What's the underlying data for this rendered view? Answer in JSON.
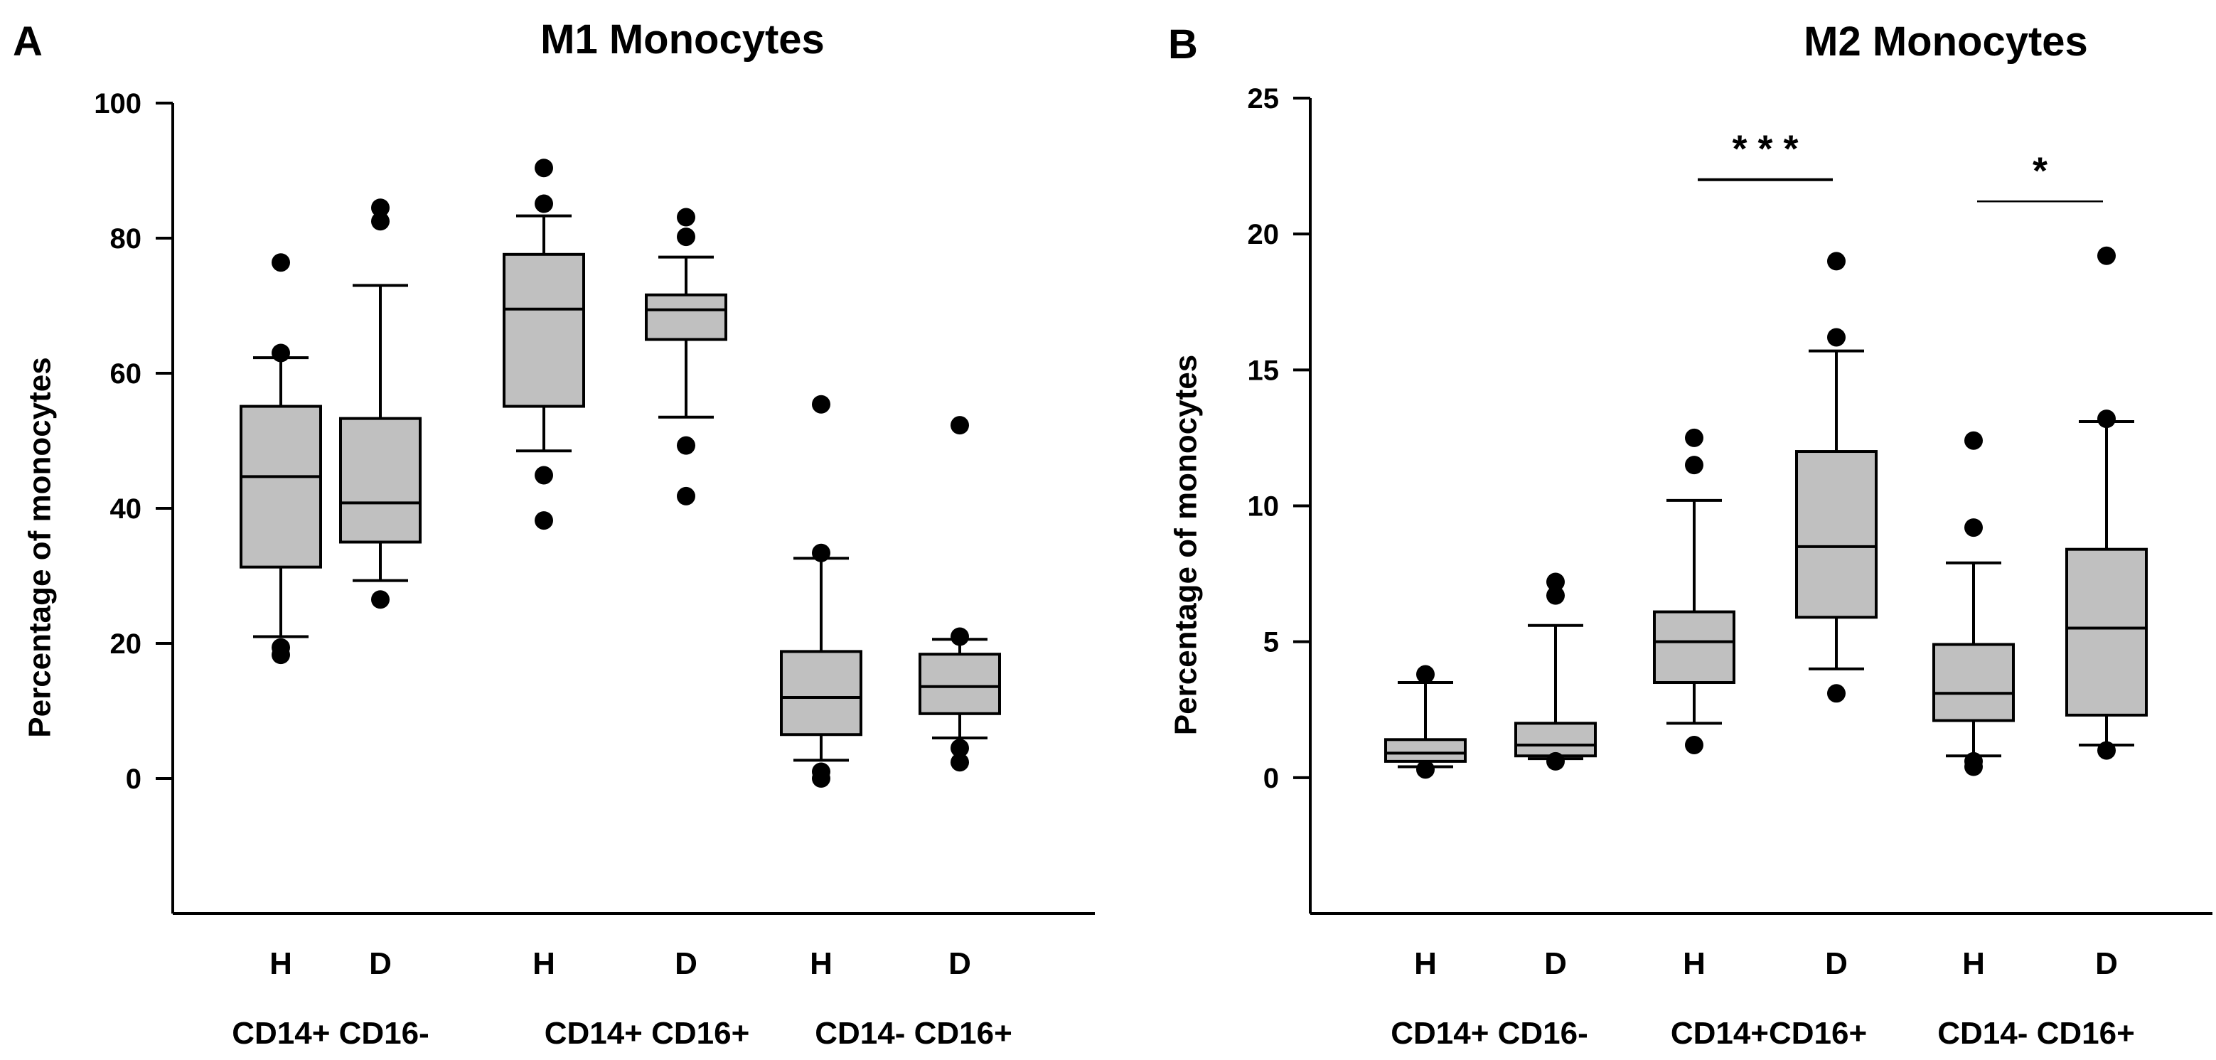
{
  "chart_data": [
    {
      "type": "box",
      "panel_label": "A",
      "title": "M1 Monocytes",
      "ylabel": "Percentage of monocytes",
      "xlabel": "",
      "ylim": [
        -20,
        100
      ],
      "yticks": [
        0,
        20,
        40,
        60,
        80,
        100
      ],
      "grid": false,
      "box_color": "#c0c0c0",
      "categories": [
        "H",
        "D",
        "H",
        "D",
        "H",
        "D"
      ],
      "groups": [
        {
          "label": "CD14+ CD16-",
          "categories": [
            0,
            1
          ]
        },
        {
          "label": "CD14+ CD16+",
          "categories": [
            2,
            3
          ]
        },
        {
          "label": "CD14- CD16+",
          "categories": [
            4,
            5
          ]
        }
      ],
      "boxes": [
        {
          "whisker_low": 21,
          "q1": 31.3,
          "median": 44.7,
          "q3": 55.1,
          "whisker_high": 62.3,
          "outliers": [
            18.3,
            19.4,
            63,
            76.4
          ]
        },
        {
          "whisker_low": 29.3,
          "q1": 35,
          "median": 40.8,
          "q3": 53.3,
          "whisker_high": 73,
          "outliers": [
            26.5,
            82.5,
            84.5
          ]
        },
        {
          "whisker_low": 48.5,
          "q1": 55.1,
          "median": 69.5,
          "q3": 77.6,
          "whisker_high": 83.3,
          "outliers": [
            38.2,
            44.9,
            85.1,
            90.4
          ]
        },
        {
          "whisker_low": 53.5,
          "q1": 65,
          "median": 69.4,
          "q3": 71.6,
          "whisker_high": 77.2,
          "outliers": [
            41.8,
            49.3,
            80.2,
            83.1
          ]
        },
        {
          "whisker_low": 2.7,
          "q1": 6.5,
          "median": 12,
          "q3": 18.8,
          "whisker_high": 32.6,
          "outliers": [
            0,
            1,
            33.4,
            55.4
          ]
        },
        {
          "whisker_low": 6,
          "q1": 9.6,
          "median": 13.6,
          "q3": 18.4,
          "whisker_high": 20.6,
          "outliers": [
            2.4,
            4.5,
            21,
            52.3
          ]
        }
      ],
      "significance": []
    },
    {
      "type": "box",
      "panel_label": "B",
      "title": "M2 Monocytes",
      "ylabel": "Percentage of monocytes",
      "xlabel": "",
      "ylim": [
        -5,
        25
      ],
      "yticks": [
        0,
        5,
        10,
        15,
        20,
        25
      ],
      "grid": false,
      "box_color": "#c0c0c0",
      "categories": [
        "H",
        "D",
        "H",
        "D",
        "H",
        "D"
      ],
      "groups": [
        {
          "label": "CD14+ CD16-",
          "categories": [
            0,
            1
          ]
        },
        {
          "label": "CD14+CD16+",
          "categories": [
            2,
            3
          ]
        },
        {
          "label": "CD14- CD16+",
          "categories": [
            4,
            5
          ]
        }
      ],
      "boxes": [
        {
          "whisker_low": 0.4,
          "q1": 0.6,
          "median": 0.9,
          "q3": 1.4,
          "whisker_high": 3.5,
          "outliers": [
            0.3,
            3.8
          ]
        },
        {
          "whisker_low": 0.7,
          "q1": 0.8,
          "median": 1.2,
          "q3": 2,
          "whisker_high": 5.6,
          "outliers": [
            0.6,
            6.7,
            7.2
          ]
        },
        {
          "whisker_low": 2,
          "q1": 3.5,
          "median": 5,
          "q3": 6.1,
          "whisker_high": 10.2,
          "outliers": [
            1.2,
            11.5,
            12.5
          ]
        },
        {
          "whisker_low": 4,
          "q1": 5.9,
          "median": 8.5,
          "q3": 12,
          "whisker_high": 15.7,
          "outliers": [
            3.1,
            16.2,
            19
          ]
        },
        {
          "whisker_low": 0.8,
          "q1": 2.1,
          "median": 3.1,
          "q3": 4.9,
          "whisker_high": 7.9,
          "outliers": [
            0.4,
            0.6,
            9.2,
            12.4
          ]
        },
        {
          "whisker_low": 1.2,
          "q1": 2.3,
          "median": 5.5,
          "q3": 8.4,
          "whisker_high": 13.1,
          "outliers": [
            1,
            13.2,
            19.2
          ]
        }
      ],
      "significance": [
        {
          "from": 2,
          "to": 3,
          "y": 22,
          "label": "* * *"
        },
        {
          "from": 4,
          "to": 5,
          "y": 21.2,
          "label": "*"
        }
      ]
    }
  ]
}
